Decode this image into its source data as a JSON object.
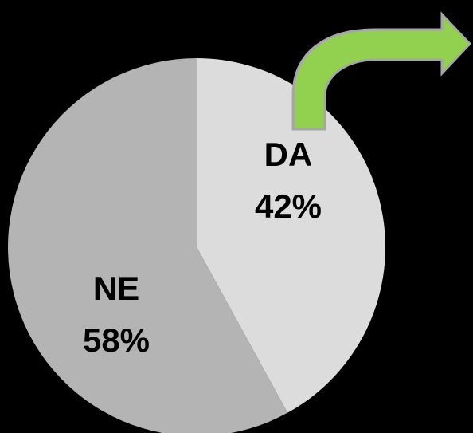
{
  "chart_data": {
    "type": "pie",
    "categories": [
      "DA",
      "NE"
    ],
    "values": [
      42,
      58
    ],
    "value_labels": [
      "42%",
      "58%"
    ],
    "colors": [
      "#dcdcdc",
      "#b4b4b4"
    ]
  }
}
